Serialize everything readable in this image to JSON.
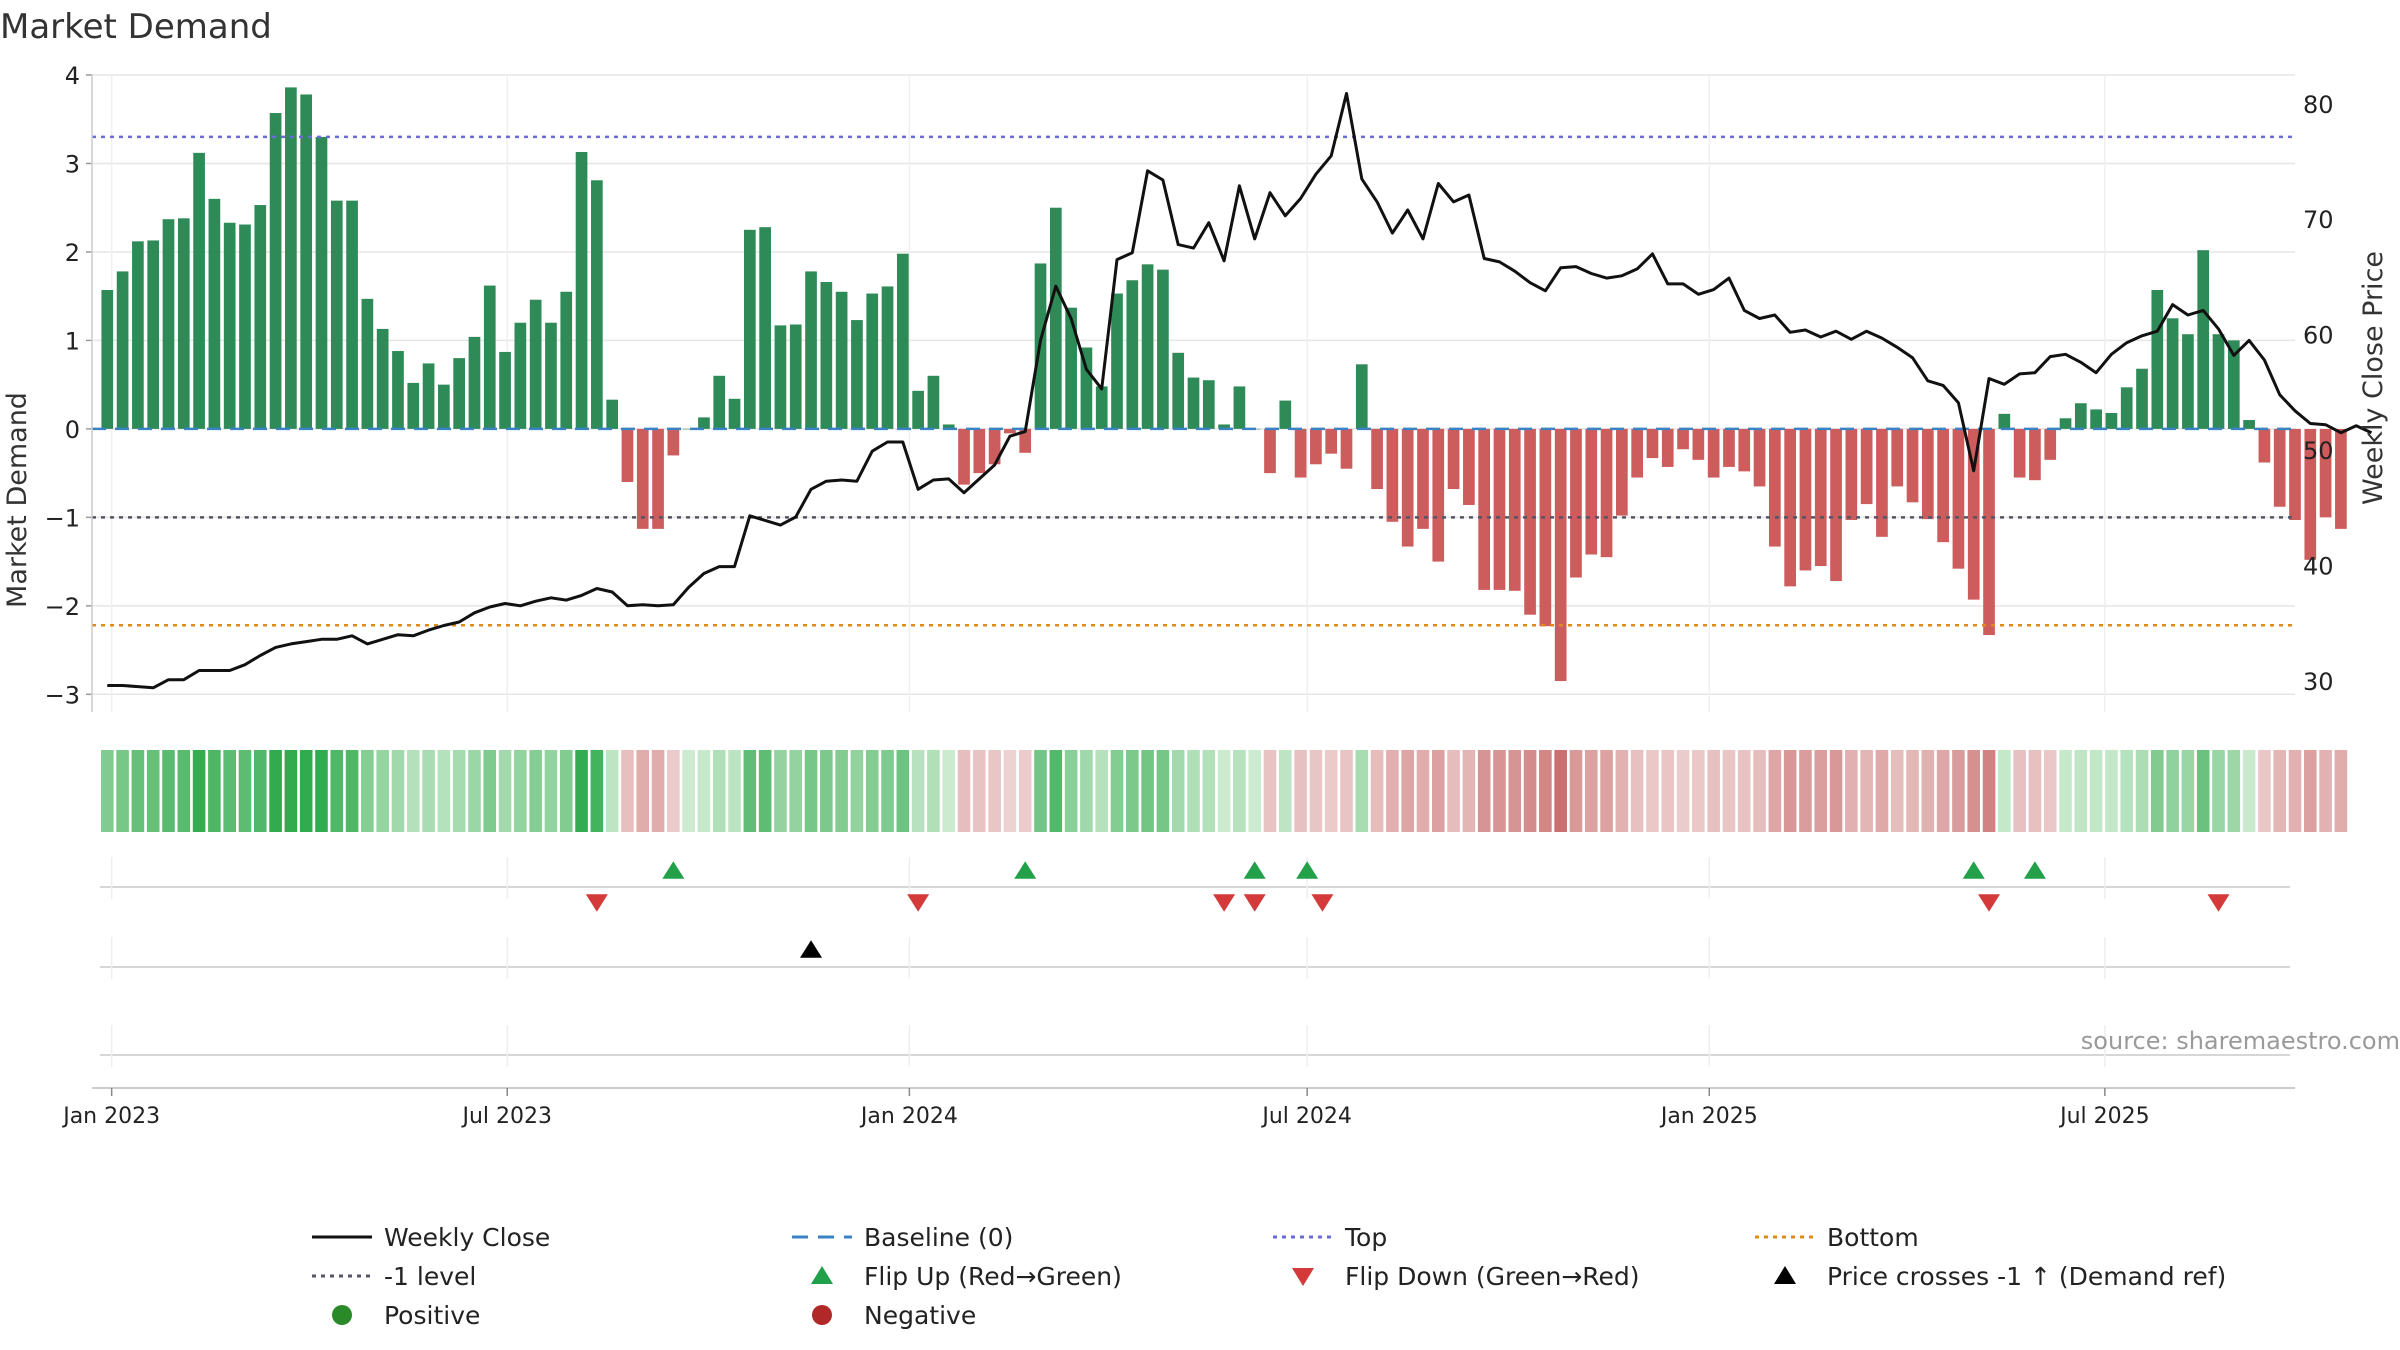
{
  "chart_data": {
    "type": "bar+line",
    "title": "Market Demand",
    "ylabel_left": "Market Demand",
    "ylabel_right": "Weekly Close Price",
    "source": "source: sharemaestro.com",
    "ylim_left": [
      -3.2,
      4.0
    ],
    "yticks_left": [
      4,
      3,
      2,
      1,
      0,
      -1,
      -2,
      -3
    ],
    "ytick_labels_left": [
      "4",
      "3",
      "2",
      "1",
      "0",
      "−1",
      "−2",
      "−3"
    ],
    "ylim_right": [
      27.3,
      82.5
    ],
    "yticks_right": [
      80,
      70,
      60,
      50,
      40,
      30
    ],
    "x_start": "2022-12-23",
    "x_end": "2025-09-26",
    "x_ticks": [
      {
        "date": "2023-01-01",
        "label": "Jan 2023"
      },
      {
        "date": "2023-07-01",
        "label": "Jul 2023"
      },
      {
        "date": "2024-01-01",
        "label": "Jan 2024"
      },
      {
        "date": "2024-07-01",
        "label": "Jul 2024"
      },
      {
        "date": "2025-01-01",
        "label": "Jan 2025"
      },
      {
        "date": "2025-07-01",
        "label": "Jul 2025"
      }
    ],
    "first_week": "2022-12-30",
    "demand": [
      1.57,
      1.78,
      2.12,
      2.13,
      2.37,
      2.38,
      3.12,
      2.6,
      2.33,
      2.31,
      2.53,
      3.57,
      3.86,
      3.78,
      3.3,
      2.58,
      2.58,
      1.47,
      1.13,
      0.88,
      0.52,
      0.74,
      0.5,
      0.8,
      1.04,
      1.62,
      0.87,
      1.2,
      1.46,
      1.2,
      1.55,
      3.13,
      2.81,
      0.33,
      -0.6,
      -1.13,
      -1.13,
      -0.3,
      0.0,
      0.13,
      0.6,
      0.34,
      2.25,
      2.28,
      1.17,
      1.18,
      1.78,
      1.66,
      1.55,
      1.23,
      1.53,
      1.61,
      1.98,
      0.43,
      0.6,
      0.05,
      -0.63,
      -0.5,
      -0.4,
      -0.05,
      -0.27,
      1.87,
      2.5,
      1.37,
      0.92,
      0.48,
      1.53,
      1.68,
      1.86,
      1.8,
      0.86,
      0.58,
      0.55,
      0.05,
      0.48,
      0.0,
      -0.5,
      0.32,
      -0.55,
      -0.4,
      -0.28,
      -0.45,
      0.73,
      -0.68,
      -1.05,
      -1.33,
      -1.13,
      -1.5,
      -0.68,
      -0.86,
      -1.82,
      -1.82,
      -1.83,
      -2.1,
      -2.23,
      -2.85,
      -1.68,
      -1.42,
      -1.45,
      -0.98,
      -0.55,
      -0.33,
      -0.43,
      -0.23,
      -0.35,
      -0.55,
      -0.43,
      -0.48,
      -0.65,
      -1.33,
      -1.78,
      -1.6,
      -1.55,
      -1.72,
      -1.03,
      -0.85,
      -1.22,
      -0.65,
      -0.83,
      -1.02,
      -1.28,
      -1.58,
      -1.93,
      -2.33,
      0.17,
      -0.55,
      -0.58,
      -0.35,
      0.12,
      0.29,
      0.22,
      0.18,
      0.47,
      0.68,
      1.57,
      1.25,
      1.07,
      2.02,
      1.07,
      1.0,
      0.1,
      -0.38,
      -0.88,
      -1.03,
      -1.48,
      -1.0,
      -1.13
    ],
    "close": [
      29.6,
      29.6,
      29.5,
      29.4,
      30.1,
      30.1,
      30.9,
      30.9,
      30.9,
      31.4,
      32.2,
      32.9,
      33.2,
      33.4,
      33.6,
      33.6,
      33.9,
      33.2,
      33.6,
      34.0,
      33.9,
      34.4,
      34.8,
      35.1,
      35.9,
      36.4,
      36.7,
      36.5,
      36.9,
      37.2,
      37.0,
      37.4,
      38.0,
      37.7,
      36.5,
      36.6,
      36.5,
      36.6,
      38.1,
      39.3,
      39.9,
      39.9,
      44.3,
      43.9,
      43.5,
      44.2,
      46.6,
      47.3,
      47.4,
      47.3,
      49.9,
      50.7,
      50.7,
      46.6,
      47.4,
      47.5,
      46.3,
      47.5,
      48.7,
      51.2,
      51.6,
      59.5,
      64.2,
      61.4,
      57.0,
      55.3,
      66.5,
      67.1,
      74.2,
      73.4,
      67.8,
      67.5,
      69.7,
      66.4,
      72.9,
      68.3,
      72.3,
      70.3,
      71.8,
      73.9,
      75.5,
      80.9,
      73.5,
      71.5,
      68.8,
      70.8,
      68.3,
      73.1,
      71.5,
      72.1,
      66.6,
      66.3,
      65.5,
      64.5,
      63.8,
      65.8,
      65.9,
      65.3,
      64.9,
      65.1,
      65.7,
      67.0,
      64.4,
      64.4,
      63.5,
      63.9,
      64.9,
      62.1,
      61.4,
      61.7,
      60.2,
      60.4,
      59.8,
      60.3,
      59.6,
      60.3,
      59.7,
      58.9,
      58.0,
      56.0,
      55.6,
      54.1,
      48.2,
      56.2,
      55.7,
      56.6,
      56.7,
      58.1,
      58.3,
      57.6,
      56.7,
      58.3,
      59.3,
      59.9,
      60.3,
      62.6,
      61.7,
      62.1,
      60.5,
      58.2,
      59.5,
      57.8,
      54.8,
      53.4,
      52.3,
      52.2,
      51.5,
      52.1,
      51.5
    ],
    "levels": {
      "top": 3.3,
      "baseline": 0,
      "minus_one": -1,
      "bottom": -2.22
    },
    "markers": {
      "flip_up": [
        "2023-09-15",
        "2024-02-23",
        "2024-06-07",
        "2024-07-01",
        "2025-05-02",
        "2025-05-30"
      ],
      "flip_down": [
        "2023-08-11",
        "2024-01-05",
        "2024-05-24",
        "2024-06-07",
        "2024-07-08",
        "2025-05-09",
        "2025-08-22"
      ],
      "price_cross": [
        "2023-11-17"
      ]
    },
    "legend": [
      {
        "label": "Weekly Close",
        "kind": "solid-line",
        "color": "#111111"
      },
      {
        "label": "Baseline (0)",
        "kind": "dashed-line",
        "color": "#3a82c4"
      },
      {
        "label": "Top",
        "kind": "dotted-line",
        "color": "#6a6ad8"
      },
      {
        "label": "Bottom",
        "kind": "dotted-line",
        "color": "#e08a1a"
      },
      {
        "label": "-1 level",
        "kind": "dotted-line",
        "color": "#555566"
      },
      {
        "label": "Flip Up (Red→Green)",
        "kind": "triangle-up",
        "color": "#22a04a"
      },
      {
        "label": "Flip Down (Green→Red)",
        "kind": "triangle-down",
        "color": "#d43a3a"
      },
      {
        "label": "Price crosses -1 ↑ (Demand ref)",
        "kind": "triangle-up",
        "color": "#000000"
      },
      {
        "label": "Positive",
        "kind": "dot",
        "color": "#2a8a2a"
      },
      {
        "label": "Negative",
        "kind": "dot",
        "color": "#b02828"
      }
    ],
    "colors": {
      "positive_bar": "#2e8b57",
      "negative_bar": "#cd5c5c",
      "grid": "#e6e6e6",
      "axis": "#cccccc",
      "text": "#222222"
    }
  }
}
